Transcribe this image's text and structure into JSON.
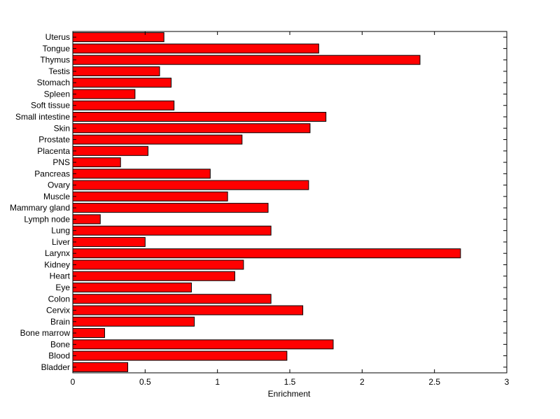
{
  "chart_data": {
    "type": "bar",
    "orientation": "horizontal",
    "title": "",
    "xlabel": "Enrichment",
    "ylabel": "",
    "xlim": [
      0,
      3
    ],
    "xticks": [
      "0",
      "0.5",
      "1",
      "1.5",
      "2",
      "2.5",
      "3"
    ],
    "bar_color": "#ff0000",
    "grid": false,
    "categories": [
      "Bladder",
      "Blood",
      "Bone",
      "Bone marrow",
      "Brain",
      "Cervix",
      "Colon",
      "Eye",
      "Heart",
      "Kidney",
      "Larynx",
      "Liver",
      "Lung",
      "Lymph node",
      "Mammary gland",
      "Muscle",
      "Ovary",
      "Pancreas",
      "PNS",
      "Placenta",
      "Prostate",
      "Skin",
      "Small intestine",
      "Soft tissue",
      "Spleen",
      "Stomach",
      "Testis",
      "Thymus",
      "Tongue",
      "Uterus"
    ],
    "values": [
      0.38,
      1.48,
      1.8,
      0.22,
      0.84,
      1.59,
      1.37,
      0.82,
      1.12,
      1.18,
      2.68,
      0.5,
      1.37,
      0.19,
      1.35,
      1.07,
      1.63,
      0.95,
      0.33,
      0.52,
      1.17,
      1.64,
      1.75,
      0.7,
      0.43,
      0.68,
      0.6,
      2.4,
      1.7,
      0.63
    ]
  }
}
